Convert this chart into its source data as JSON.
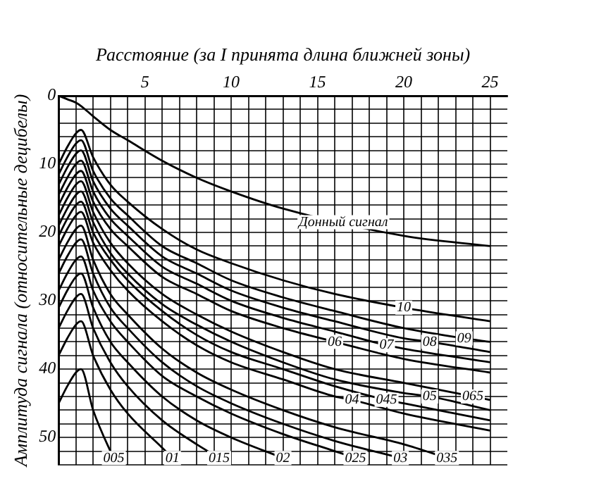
{
  "chart_data": {
    "type": "line",
    "xlabel": "Расстояние (за I принята длина ближней зоны)",
    "ylabel": "Амплитуда сигнала (относительные децибелы)",
    "x": [
      0,
      0.5,
      1,
      1.3,
      2,
      3,
      4,
      6,
      8,
      10,
      13,
      16,
      20,
      25
    ],
    "series": [
      {
        "color": "#000000",
        "x": [
          0,
          0.5,
          1,
          1.3,
          2,
          3,
          4,
          6,
          8,
          10,
          13,
          20,
          25
        ],
        "values": [
          0,
          0.5,
          1,
          1.5,
          3,
          5,
          6.5,
          9.5,
          12,
          14,
          16.5,
          20.5,
          22
        ]
      },
      {
        "color": "#000000",
        "values": [
          10,
          7.5,
          5.5,
          5,
          9,
          13,
          15.5,
          19.5,
          22.5,
          24.5,
          27,
          29,
          31,
          33
        ]
      },
      {
        "color": "#000000",
        "x": [
          0,
          0.5,
          1,
          1.3,
          2,
          3,
          4,
          6,
          8,
          10,
          13,
          16,
          20,
          23.5,
          25
        ],
        "values": [
          11.5,
          9,
          7,
          6.5,
          11,
          15,
          17.5,
          22,
          24.5,
          27,
          29.5,
          31.5,
          34,
          35.5,
          36
        ]
      },
      {
        "color": "#000000",
        "x": [
          0,
          0.5,
          1,
          1.3,
          2,
          3,
          4,
          6,
          8,
          10,
          13,
          16,
          20,
          21.5,
          25
        ],
        "values": [
          13,
          10.5,
          8.5,
          8,
          12.5,
          16.5,
          19,
          23.5,
          26,
          28.5,
          31,
          33,
          35.5,
          36,
          37.5
        ]
      },
      {
        "color": "#000000",
        "x": [
          0,
          0.5,
          1,
          1.3,
          2,
          3,
          4,
          6,
          8,
          10,
          13,
          16,
          19,
          20,
          25
        ],
        "values": [
          14.5,
          12,
          10,
          9.5,
          14,
          18,
          20.5,
          25,
          27.5,
          30,
          32.5,
          34.5,
          36.5,
          37,
          39
        ]
      },
      {
        "color": "#000000",
        "values": [
          16,
          13.5,
          11.5,
          11,
          15.5,
          19.5,
          22,
          26.5,
          29,
          31.5,
          34,
          36,
          38.5,
          40.5
        ]
      },
      {
        "color": "#000000",
        "x": [
          0,
          0.5,
          1,
          1.3,
          2,
          3,
          4,
          6,
          8,
          10,
          13,
          16,
          20,
          24,
          25
        ],
        "values": [
          17.5,
          15,
          13,
          12.5,
          17,
          21.5,
          24.5,
          29,
          32,
          34.5,
          37.5,
          40,
          42,
          44,
          44.5
        ]
      },
      {
        "color": "#000000",
        "x": [
          0,
          0.5,
          1,
          1.3,
          2,
          3,
          4,
          6,
          8,
          10,
          13,
          16,
          20,
          21.5,
          25
        ],
        "values": [
          19,
          16.5,
          14.5,
          14,
          18.5,
          23,
          26,
          30.5,
          33.5,
          36,
          39,
          41.5,
          43.5,
          44,
          46
        ]
      },
      {
        "color": "#000000",
        "x": [
          0,
          0.5,
          1,
          1.3,
          2,
          3,
          4,
          6,
          8,
          10,
          13,
          16,
          19,
          20,
          25
        ],
        "values": [
          20.5,
          18,
          16,
          15.5,
          20,
          24,
          27,
          31.5,
          35,
          37.5,
          40,
          42.5,
          44.5,
          45,
          47.5
        ]
      },
      {
        "color": "#000000",
        "x": [
          0,
          0.5,
          1,
          1.3,
          2,
          3,
          4,
          6,
          8,
          10,
          13,
          16,
          17,
          20,
          25
        ],
        "values": [
          22,
          19.5,
          17.5,
          17,
          21.5,
          25.5,
          28.5,
          33,
          36.5,
          39,
          41.5,
          44,
          44.5,
          46.5,
          49
        ]
      },
      {
        "color": "#000000",
        "x": [
          0,
          0.5,
          1,
          1.3,
          2,
          3,
          4,
          6,
          8,
          10,
          13,
          16,
          20,
          22.5
        ],
        "values": [
          24,
          21.5,
          19.5,
          19,
          24,
          29,
          32,
          37,
          40.5,
          43,
          46,
          48.5,
          51,
          53
        ]
      },
      {
        "color": "#000000",
        "x": [
          0,
          0.5,
          1,
          1.3,
          2,
          3,
          4,
          6,
          8,
          10,
          13,
          16,
          19.8
        ],
        "values": [
          26,
          23.5,
          21.5,
          21,
          26,
          31,
          34,
          39,
          42.5,
          45,
          48,
          50.5,
          53
        ]
      },
      {
        "color": "#000000",
        "x": [
          0,
          0.5,
          1,
          1.3,
          2,
          3,
          4,
          6,
          8,
          10,
          13,
          16,
          17.2
        ],
        "values": [
          28.5,
          26,
          24,
          23.5,
          28.5,
          33,
          36,
          41,
          44,
          46.5,
          49.5,
          52,
          53
        ]
      },
      {
        "color": "#000000",
        "x": [
          0,
          0.5,
          1,
          1.3,
          2,
          3,
          4,
          6,
          8,
          10,
          13
        ],
        "values": [
          31,
          28.5,
          26.5,
          26,
          31,
          36,
          39,
          44,
          47.5,
          50,
          53
        ]
      },
      {
        "color": "#000000",
        "x": [
          0,
          0.5,
          1,
          1.3,
          2,
          3,
          4,
          6,
          8,
          9.3
        ],
        "values": [
          34,
          31.5,
          29.5,
          29,
          34,
          39,
          42.5,
          47.5,
          51,
          53
        ]
      },
      {
        "color": "#000000",
        "x": [
          0,
          0.5,
          1,
          1.3,
          2,
          3,
          4,
          6,
          6.6
        ],
        "values": [
          38,
          35.5,
          33.5,
          33,
          38,
          43,
          46.5,
          51.5,
          53
        ]
      },
      {
        "color": "#000000",
        "x": [
          0,
          0.5,
          1,
          1.3,
          2,
          3,
          3.2
        ],
        "values": [
          45,
          42.5,
          40.5,
          40,
          46,
          52,
          53
        ]
      }
    ],
    "xlim": [
      0,
      26
    ],
    "ylim": [
      54,
      0
    ],
    "xticks": [
      {
        "value": 0,
        "label": null
      },
      {
        "value": 1,
        "label": null
      },
      {
        "value": 2,
        "label": null
      },
      {
        "value": 3,
        "label": null
      },
      {
        "value": 4,
        "label": null
      },
      5,
      {
        "value": 6,
        "label": null
      },
      {
        "value": 7,
        "label": null
      },
      {
        "value": 8,
        "label": null
      },
      {
        "value": 9,
        "label": null
      },
      10,
      {
        "value": 11,
        "label": null
      },
      {
        "value": 12,
        "label": null
      },
      {
        "value": 13,
        "label": null
      },
      {
        "value": 14,
        "label": null
      },
      15,
      {
        "value": 16,
        "label": null
      },
      {
        "value": 17,
        "label": null
      },
      {
        "value": 18,
        "label": null
      },
      {
        "value": 19,
        "label": null
      },
      20,
      {
        "value": 21,
        "label": null
      },
      {
        "value": 22,
        "label": null
      },
      {
        "value": 23,
        "label": null
      },
      {
        "value": 24,
        "label": null
      },
      25
    ],
    "yticks": [
      0,
      {
        "value": 2,
        "label": null
      },
      {
        "value": 4,
        "label": null
      },
      {
        "value": 6,
        "label": null
      },
      {
        "value": 8,
        "label": null
      },
      10,
      {
        "value": 12,
        "label": null
      },
      {
        "value": 14,
        "label": null
      },
      {
        "value": 16,
        "label": null
      },
      {
        "value": 18,
        "label": null
      },
      20,
      {
        "value": 22,
        "label": null
      },
      {
        "value": 24,
        "label": null
      },
      {
        "value": 26,
        "label": null
      },
      {
        "value": 28,
        "label": null
      },
      30,
      {
        "value": 32,
        "label": null
      },
      {
        "value": 34,
        "label": null
      },
      {
        "value": 36,
        "label": null
      },
      {
        "value": 38,
        "label": null
      },
      40,
      {
        "value": 42,
        "label": null
      },
      {
        "value": 44,
        "label": null
      },
      {
        "value": 46,
        "label": null
      },
      {
        "value": 48,
        "label": null
      },
      50,
      {
        "value": 52,
        "label": null
      },
      {
        "value": 54,
        "label": null
      }
    ],
    "grid": true,
    "marker": "none",
    "line_style": "solid",
    "annotations": [
      {
        "text": "Донный сигнал",
        "x": 16.5,
        "y": 18.5
      },
      {
        "text": "10",
        "x": 20,
        "y": 31
      },
      {
        "text": "06",
        "x": 16,
        "y": 36
      },
      {
        "text": "07",
        "x": 19,
        "y": 36.5
      },
      {
        "text": "08",
        "x": 21.5,
        "y": 36
      },
      {
        "text": "09",
        "x": 23.5,
        "y": 35.5
      },
      {
        "text": "04",
        "x": 17,
        "y": 44.5
      },
      {
        "text": "045",
        "x": 19,
        "y": 44.5
      },
      {
        "text": "05",
        "x": 21.5,
        "y": 44
      },
      {
        "text": "065",
        "x": 24,
        "y": 44
      },
      {
        "text": "005",
        "x": 3.2,
        "y": 53
      },
      {
        "text": "01",
        "x": 6.6,
        "y": 53
      },
      {
        "text": "015",
        "x": 9.3,
        "y": 53
      },
      {
        "text": "02",
        "x": 13,
        "y": 53
      },
      {
        "text": "025",
        "x": 17.2,
        "y": 53
      },
      {
        "text": "03",
        "x": 19.8,
        "y": 53
      },
      {
        "text": "035",
        "x": 22.5,
        "y": 53
      }
    ]
  }
}
